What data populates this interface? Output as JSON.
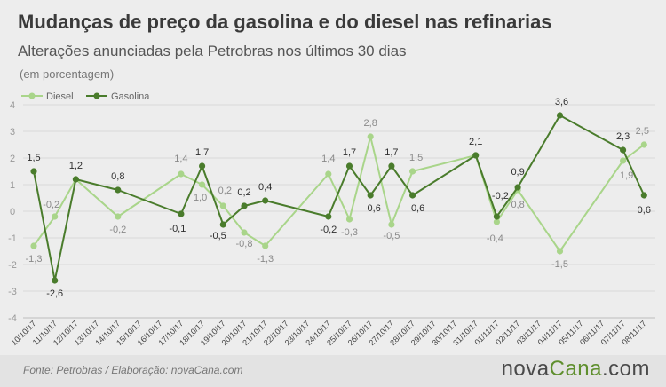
{
  "header": {
    "title": "Mudanças de preço da gasolina e do diesel nas refinarias",
    "subtitle": "Alterações anunciadas pela Petrobras nos últimos 30 dias",
    "unit": "(em porcentagem)"
  },
  "footer": {
    "source": "Fonte: Petrobras  / Elaboração: novaCana.com",
    "brand_part1": "nova",
    "brand_part2": "Cana",
    "brand_part3": ".com"
  },
  "colors": {
    "diesel": "#a9d58a",
    "gasolina": "#4a7c2c",
    "grid": "#d9d9d9",
    "axis": "#999999"
  },
  "chart_data": {
    "type": "line",
    "categories": [
      "10/10/17",
      "11/10/17",
      "12/10/17",
      "13/10/17",
      "14/10/17",
      "15/10/17",
      "16/10/17",
      "17/10/17",
      "18/10/17",
      "19/10/17",
      "20/10/17",
      "21/10/17",
      "22/10/17",
      "23/10/17",
      "24/10/17",
      "25/10/17",
      "26/10/17",
      "27/10/17",
      "28/10/17",
      "29/10/17",
      "30/10/17",
      "31/10/17",
      "01/11/17",
      "02/11/17",
      "03/11/17",
      "04/11/17",
      "05/11/17",
      "06/11/17",
      "07/11/17",
      "08/11/17"
    ],
    "ylim": [
      -4,
      4
    ],
    "yticks": [
      "4",
      "3",
      "2",
      "1",
      "0",
      "-1",
      "-2",
      "-3",
      "-4"
    ],
    "legend_position": "top-left",
    "grid": true,
    "series": [
      {
        "name": "Diesel",
        "points": [
          {
            "x": "10/10/17",
            "y": -1.3,
            "label": "-1,3"
          },
          {
            "x": "11/10/17",
            "y": -0.2,
            "label": "-0,2"
          },
          {
            "x": "12/10/17",
            "y": 1.2,
            "label": ""
          },
          {
            "x": "14/10/17",
            "y": -0.2,
            "label": "-0,2"
          },
          {
            "x": "17/10/17",
            "y": 1.4,
            "label": "1,4"
          },
          {
            "x": "18/10/17",
            "y": 1.0,
            "label": "1,0"
          },
          {
            "x": "19/10/17",
            "y": 0.2,
            "label": "0,2"
          },
          {
            "x": "20/10/17",
            "y": -0.8,
            "label": "-0,8"
          },
          {
            "x": "21/10/17",
            "y": -1.3,
            "label": "-1,3"
          },
          {
            "x": "24/10/17",
            "y": 1.4,
            "label": "1,4"
          },
          {
            "x": "25/10/17",
            "y": -0.3,
            "label": "-0,3"
          },
          {
            "x": "26/10/17",
            "y": 2.8,
            "label": "2,8"
          },
          {
            "x": "27/10/17",
            "y": -0.5,
            "label": "-0,5"
          },
          {
            "x": "28/10/17",
            "y": 1.5,
            "label": "1,5"
          },
          {
            "x": "31/10/17",
            "y": 2.1,
            "label": ""
          },
          {
            "x": "01/11/17",
            "y": -0.4,
            "label": "-0,4"
          },
          {
            "x": "02/11/17",
            "y": 0.8,
            "label": "0,8"
          },
          {
            "x": "04/11/17",
            "y": -1.5,
            "label": "-1,5"
          },
          {
            "x": "07/11/17",
            "y": 1.9,
            "label": "1,9"
          },
          {
            "x": "08/11/17",
            "y": 2.5,
            "label": "2,5"
          }
        ]
      },
      {
        "name": "Gasolina",
        "points": [
          {
            "x": "10/10/17",
            "y": 1.5,
            "label": "1,5"
          },
          {
            "x": "11/10/17",
            "y": -2.6,
            "label": "-2,6"
          },
          {
            "x": "12/10/17",
            "y": 1.2,
            "label": "1,2"
          },
          {
            "x": "14/10/17",
            "y": 0.8,
            "label": "0,8"
          },
          {
            "x": "17/10/17",
            "y": -0.1,
            "label": "-0,1"
          },
          {
            "x": "18/10/17",
            "y": 1.7,
            "label": "1,7"
          },
          {
            "x": "19/10/17",
            "y": -0.5,
            "label": "-0,5"
          },
          {
            "x": "20/10/17",
            "y": 0.2,
            "label": "0,2"
          },
          {
            "x": "21/10/17",
            "y": 0.4,
            "label": "0,4"
          },
          {
            "x": "24/10/17",
            "y": -0.2,
            "label": "-0,2"
          },
          {
            "x": "25/10/17",
            "y": 1.7,
            "label": "1,7"
          },
          {
            "x": "26/10/17",
            "y": 0.6,
            "label": "0,6"
          },
          {
            "x": "27/10/17",
            "y": 1.7,
            "label": "1,7"
          },
          {
            "x": "28/10/17",
            "y": 0.6,
            "label": "0,6"
          },
          {
            "x": "31/10/17",
            "y": 2.1,
            "label": "2,1"
          },
          {
            "x": "01/11/17",
            "y": -0.2,
            "label": "-0,2"
          },
          {
            "x": "02/11/17",
            "y": 0.9,
            "label": "0,9"
          },
          {
            "x": "04/11/17",
            "y": 3.6,
            "label": "3,6"
          },
          {
            "x": "07/11/17",
            "y": 2.3,
            "label": "2,3"
          },
          {
            "x": "08/11/17",
            "y": 0.6,
            "label": "0,6"
          }
        ]
      }
    ]
  }
}
